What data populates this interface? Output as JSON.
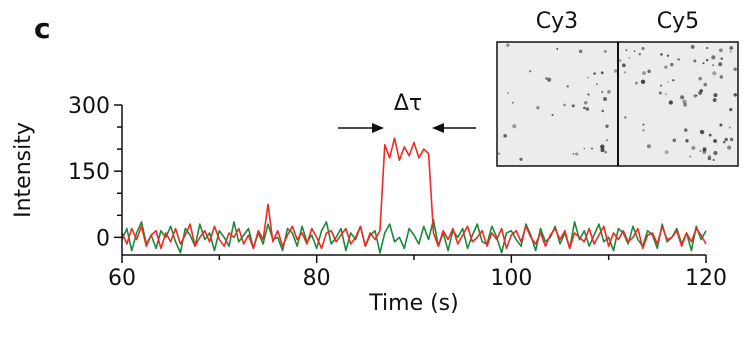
{
  "chart_data": {
    "type": "line",
    "panel_label": "c",
    "x_label": "Time (s)",
    "y_label": "Intensity",
    "annotation": "Δτ",
    "inset_labels": [
      "Cy3",
      "Cy5"
    ],
    "xlim": [
      60,
      120
    ],
    "xticks": [
      60,
      80,
      100,
      120
    ],
    "xminorticks": [
      70,
      90,
      110
    ],
    "ylim": [
      -40,
      300
    ],
    "yticks": [
      0,
      150,
      300
    ],
    "yminorticks": [
      50,
      100,
      200,
      250
    ],
    "x": [
      60,
      60.5,
      61,
      61.5,
      62,
      62.5,
      63,
      63.5,
      64,
      64.5,
      65,
      65.5,
      66,
      66.5,
      67,
      67.5,
      68,
      68.5,
      69,
      69.5,
      70,
      70.5,
      71,
      71.5,
      72,
      72.5,
      73,
      73.5,
      74,
      74.5,
      75,
      75.5,
      76,
      76.5,
      77,
      77.5,
      78,
      78.5,
      79,
      79.5,
      80,
      80.5,
      81,
      81.5,
      82,
      82.5,
      83,
      83.5,
      84,
      84.5,
      85,
      85.5,
      86,
      86.5,
      87,
      87.5,
      88,
      88.5,
      89,
      89.5,
      90,
      90.5,
      91,
      91.5,
      92,
      92.5,
      93,
      93.5,
      94,
      94.5,
      95,
      95.5,
      96,
      96.5,
      97,
      97.5,
      98,
      98.5,
      99,
      99.5,
      100,
      100.5,
      101,
      101.5,
      102,
      102.5,
      103,
      103.5,
      104,
      104.5,
      105,
      105.5,
      106,
      106.5,
      107,
      107.5,
      108,
      108.5,
      109,
      109.5,
      110,
      110.5,
      111,
      111.5,
      112,
      112.5,
      113,
      113.5,
      114,
      114.5,
      115,
      115.5,
      116,
      116.5,
      117,
      117.5,
      118,
      118.5,
      119,
      119.5,
      120
    ],
    "series": [
      {
        "color": "#1a8a3a",
        "values": [
          -5,
          20,
          -30,
          10,
          35,
          -15,
          5,
          -25,
          15,
          0,
          25,
          -10,
          -35,
          20,
          5,
          -20,
          30,
          -5,
          10,
          -30,
          15,
          0,
          -20,
          35,
          -10,
          5,
          20,
          -25,
          10,
          -15,
          30,
          -5,
          0,
          -30,
          20,
          10,
          -20,
          25,
          -10,
          5,
          -25,
          15,
          35,
          -15,
          0,
          20,
          -30,
          10,
          -5,
          25,
          -20,
          5,
          15,
          -35,
          10,
          30,
          -10,
          0,
          -25,
          20,
          5,
          -15,
          25,
          -5,
          40,
          -20,
          10,
          -30,
          15,
          0,
          20,
          -25,
          5,
          30,
          -10,
          -15,
          25,
          0,
          -35,
          10,
          15,
          -5,
          -20,
          30,
          5,
          -30,
          20,
          -10,
          0,
          25,
          -15,
          10,
          -25,
          35,
          -5,
          15,
          -20,
          5,
          30,
          -10,
          0,
          -30,
          20,
          10,
          -15,
          25,
          -5,
          -20,
          15,
          5,
          -25,
          30,
          -10,
          0,
          20,
          -15,
          10,
          -30,
          25,
          -5,
          15
        ]
      },
      {
        "color": "#ee2a24",
        "values": [
          10,
          -15,
          20,
          -5,
          25,
          -20,
          5,
          15,
          -25,
          10,
          -10,
          20,
          -15,
          5,
          30,
          -20,
          0,
          15,
          -10,
          25,
          -5,
          -20,
          10,
          0,
          20,
          -15,
          5,
          -25,
          15,
          -5,
          75,
          -10,
          15,
          -20,
          5,
          25,
          -5,
          10,
          -15,
          20,
          0,
          -25,
          10,
          15,
          -10,
          5,
          20,
          -15,
          0,
          25,
          -20,
          10,
          -5,
          15,
          210,
          180,
          225,
          175,
          205,
          185,
          215,
          180,
          200,
          190,
          10,
          -20,
          15,
          -5,
          20,
          -15,
          5,
          25,
          -10,
          0,
          15,
          -20,
          10,
          -5,
          20,
          -25,
          5,
          15,
          -10,
          25,
          0,
          -15,
          10,
          -20,
          5,
          20,
          -5,
          15,
          -25,
          10,
          0,
          -10,
          20,
          -15,
          5,
          25,
          -20,
          10,
          -5,
          15,
          -10,
          0,
          20,
          -25,
          5,
          10,
          -15,
          25,
          -5,
          0,
          15,
          -20,
          10,
          -10,
          20,
          5,
          -15
        ]
      }
    ]
  }
}
